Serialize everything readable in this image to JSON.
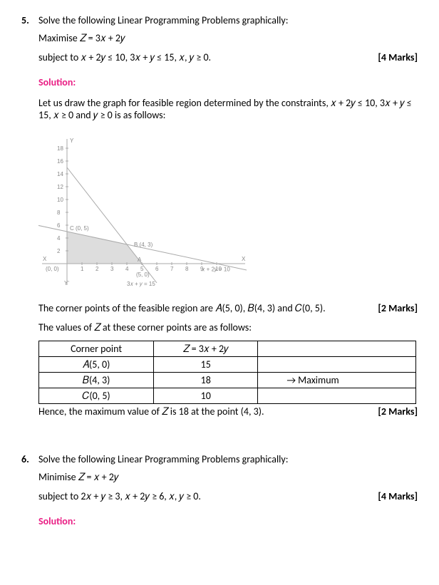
{
  "q5": {
    "number": "5.",
    "prompt": "Solve the following Linear Programming Problems graphically:",
    "maxline": "Maximise 𝑍 = 3𝑥 + 2𝑦",
    "subjectline": "subject to 𝑥 + 2𝑦 ≤ 10, 3𝑥 + 𝑦 ≤ 15, 𝑥, 𝑦 ≥ 0.",
    "marks": "[4 Marks]",
    "solution_label": "Solution:",
    "intro": "Let us draw the graph for feasible region determined by the constraints, 𝑥 + 2𝑦 ≤ 10, 3𝑥 + 𝑦 ≤ 15, 𝑥 ≥ 0 and 𝑦 ≥ 0 is as follows:",
    "graph": {
      "originX": 40,
      "originY": 180,
      "xUnit": 21,
      "yUnit": 9,
      "xTicks": [
        1,
        2,
        3,
        4,
        5,
        6,
        7,
        8,
        9,
        10
      ],
      "yTicks": [
        2,
        4,
        6,
        8,
        10,
        12,
        14,
        16,
        18
      ],
      "xLabel": "X",
      "yLabel": "Y",
      "yPrime": "Y'",
      "origin": "(0, 0)",
      "clabel": "C (0, 5)",
      "blabel": "B (4, 3)",
      "alabel": "A",
      "a2label": "(5, 0)",
      "eq1": "𝑥 + 2𝑦 = 10",
      "eq2": "3𝑥 + 𝑦 = 15",
      "feasible": [
        [
          0,
          0
        ],
        [
          5,
          0
        ],
        [
          4,
          3
        ],
        [
          0,
          5
        ]
      ],
      "line1": [
        [
          0,
          5
        ],
        [
          10,
          0
        ]
      ],
      "line2": [
        [
          0,
          15
        ],
        [
          5,
          0
        ]
      ]
    },
    "corner_line": "The corner points of the feasible region are 𝐴(5, 0), 𝐵(4, 3) and 𝐶(0, 5).",
    "marks2": "[2 Marks]",
    "values_intro": "The values of 𝑍 at these corner points are as follows:",
    "table": {
      "header": [
        "Corner point",
        "𝑍 = 3𝑥 + 2𝑦",
        ""
      ],
      "rows": [
        [
          "𝐴(5, 0)",
          "15",
          ""
        ],
        [
          "𝐵(4, 3)",
          "18",
          "→ Maximum"
        ],
        [
          "𝐶(0, 5)",
          "10",
          ""
        ]
      ]
    },
    "conclusion": "Hence, the maximum value of 𝑍 is 18 at the point (4, 3).",
    "marks3": "[2 Marks]"
  },
  "q6": {
    "number": "6.",
    "prompt": "Solve the following Linear Programming Problems graphically:",
    "minline": "Minimise 𝑍 = 𝑥 + 2𝑦",
    "subjectline": "subject to 2𝑥 + 𝑦 ≥ 3, 𝑥 + 2𝑦 ≥ 6, 𝑥, 𝑦 ≥ 0.",
    "marks": "[4 Marks]",
    "solution_label": "Solution:"
  }
}
